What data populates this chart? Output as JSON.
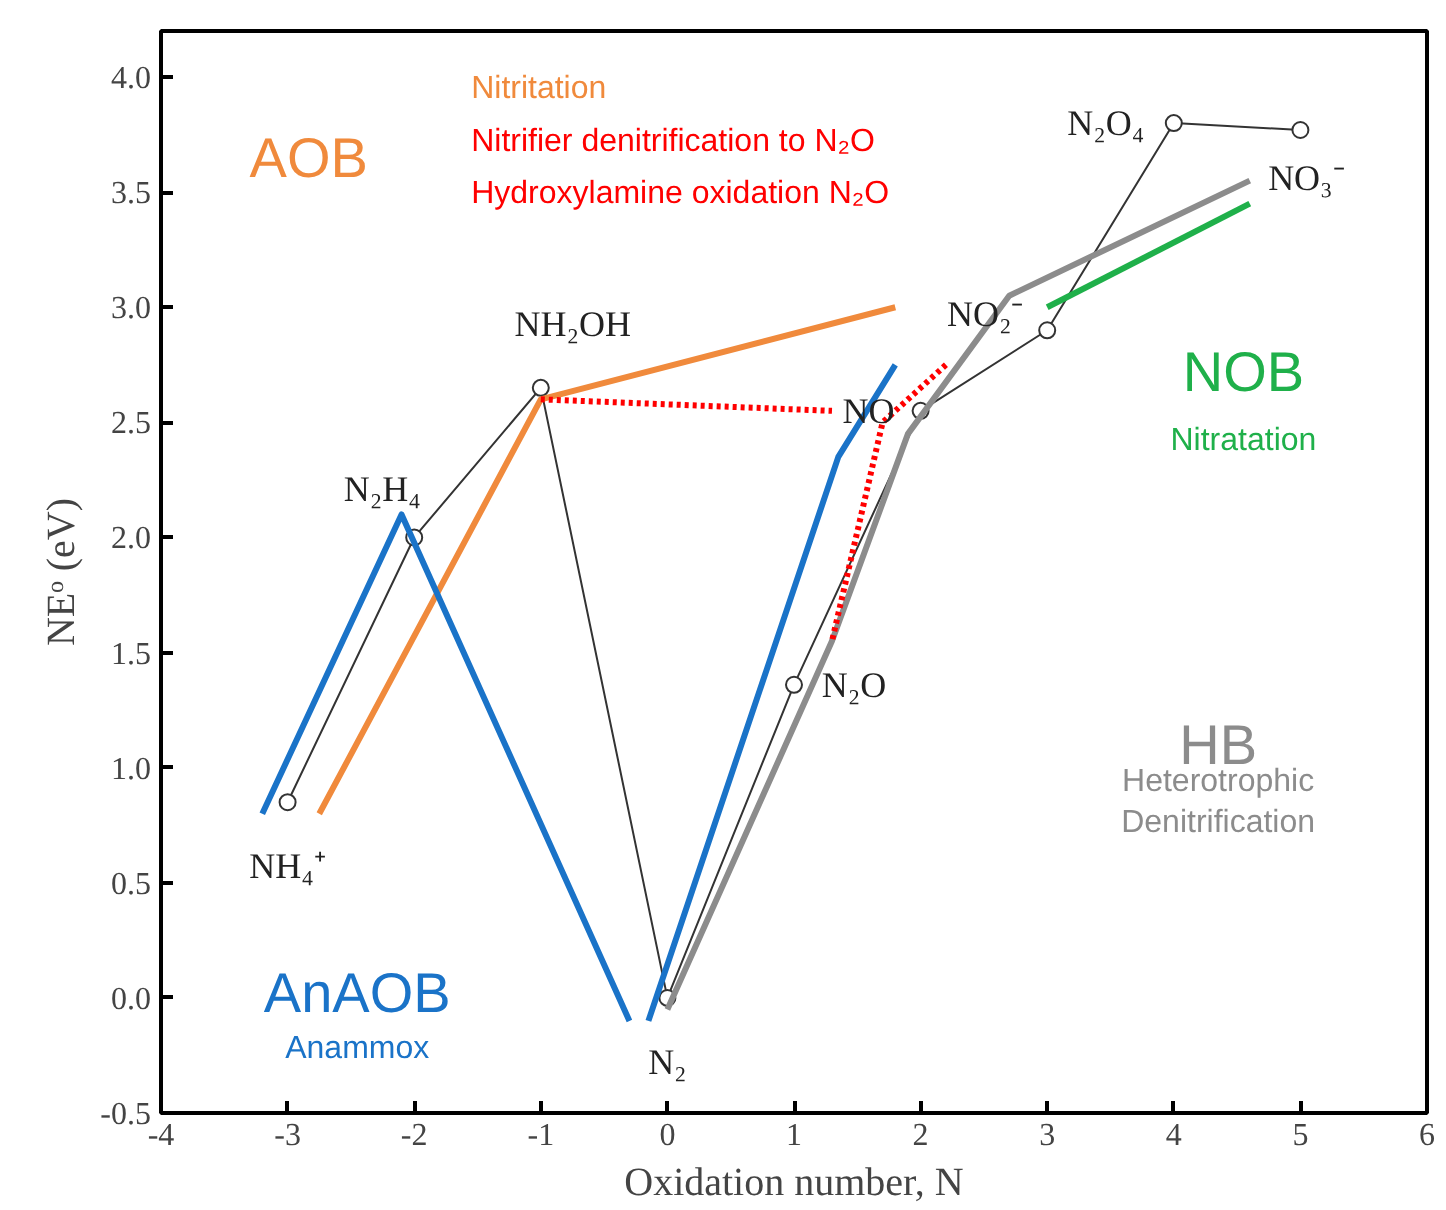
{
  "chart_data": {
    "type": "line",
    "xlabel": "Oxidation number, N",
    "ylabel": "NEᵒ (eV)",
    "xlim": [
      -4,
      6
    ],
    "xticks": [
      -4,
      -3,
      -2,
      -1,
      0,
      1,
      2,
      3,
      4,
      5,
      6
    ],
    "ylim": [
      -0.5,
      4.2
    ],
    "yticks": [
      {
        "value": -0.5,
        "label": "-0.5"
      },
      {
        "value": 0,
        "label": "0.0"
      },
      {
        "value": 0.5,
        "label": "0.5"
      },
      {
        "value": 1,
        "label": "1.0"
      },
      {
        "value": 1.5,
        "label": "1.5"
      },
      {
        "value": 2,
        "label": "2.0"
      },
      {
        "value": 2.5,
        "label": "2.5"
      },
      {
        "value": 3,
        "label": "3.0"
      },
      {
        "value": 3.5,
        "label": "3.5"
      },
      {
        "value": 4,
        "label": "4.0"
      }
    ],
    "grid": false,
    "series": [
      {
        "color": "#333333",
        "marker": "circle",
        "line_style": "solid",
        "x": [
          -3,
          -2,
          -1,
          0,
          1,
          2,
          3,
          4,
          5
        ],
        "values": [
          0.85,
          2.0,
          2.65,
          0,
          1.36,
          2.55,
          2.9,
          3.8,
          3.77
        ]
      },
      {
        "color": "#f08a3c",
        "line_style": "solid",
        "x": [
          -2.75,
          -1,
          1.8
        ],
        "values": [
          0.8,
          2.6,
          3.0
        ]
      },
      {
        "color": "#1a73c8",
        "line_style": "solid",
        "x": [
          -3.2,
          -2.1,
          -0.3
        ],
        "values": [
          0.8,
          2.1,
          -0.1
        ]
      },
      {
        "color": "#1a73c8",
        "line_style": "solid",
        "x": [
          1.8,
          1.35,
          -0.15
        ],
        "values": [
          2.75,
          2.35,
          -0.1
        ]
      },
      {
        "color": "#1fb04a",
        "line_style": "solid",
        "x": [
          3.0,
          4.6
        ],
        "values": [
          3.0,
          3.45
        ]
      },
      {
        "color": "#8c8c8c",
        "line_style": "solid",
        "x": [
          4.6,
          2.7,
          1.9,
          1.3,
          0
        ],
        "values": [
          3.55,
          3.05,
          2.45,
          1.55,
          -0.05
        ]
      },
      {
        "color": "#ff0000",
        "line_style": "dotted",
        "x": [
          -1,
          1.3
        ],
        "values": [
          2.6,
          2.55
        ]
      },
      {
        "color": "#ff0000",
        "line_style": "dotted",
        "x": [
          2.2,
          1.7,
          1.3
        ],
        "values": [
          2.75,
          2.5,
          1.55
        ]
      }
    ],
    "annotations": [
      {
        "text": "NH₄⁺",
        "x": -3,
        "y": 0.85
      },
      {
        "text": "N₂H₄",
        "x": -2,
        "y": 2.0
      },
      {
        "text": "NH₂OH",
        "x": -1,
        "y": 2.65
      },
      {
        "text": "N₂",
        "x": 0,
        "y": 0
      },
      {
        "text": "N₂O",
        "x": 1,
        "y": 1.36
      },
      {
        "text": "NO",
        "x": 2,
        "y": 2.55
      },
      {
        "text": "NO₂⁻",
        "x": 3,
        "y": 2.9
      },
      {
        "text": "N₂O₄",
        "x": 4,
        "y": 3.8
      },
      {
        "text": "NO₃⁻",
        "x": 5,
        "y": 3.77
      },
      "AOB",
      "Nitritation",
      "Nitrifier denitrification to N₂O",
      "Hydroxylamine oxidation N₂O",
      "NOB",
      "Nitratation",
      "HB",
      "Heterotrophic\nDenitrification",
      "AnAOB",
      "Anammox"
    ]
  }
}
